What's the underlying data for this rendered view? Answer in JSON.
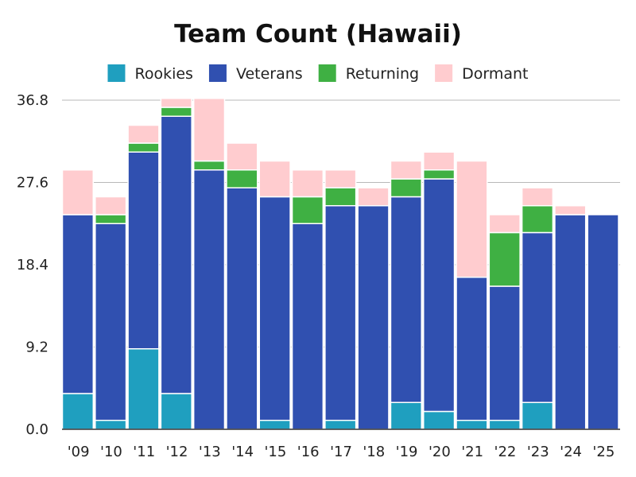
{
  "chart_data": {
    "type": "bar",
    "stacked": true,
    "title": "Team Count (Hawaii)",
    "xlabel": "",
    "ylabel": "",
    "categories": [
      "'09",
      "'10",
      "'11",
      "'12",
      "'13",
      "'14",
      "'15",
      "'16",
      "'17",
      "'18",
      "'19",
      "'20",
      "'21",
      "'22",
      "'23",
      "'24",
      "'25"
    ],
    "series": [
      {
        "name": "Rookies",
        "color": "#1f9fbf",
        "values": [
          4,
          1,
          9,
          4,
          0,
          0,
          1,
          0,
          1,
          0,
          3,
          2,
          1,
          1,
          3,
          0,
          0
        ]
      },
      {
        "name": "Veterans",
        "color": "#3050b0",
        "values": [
          20,
          22,
          22,
          31,
          29,
          27,
          25,
          23,
          24,
          25,
          23,
          26,
          16,
          15,
          19,
          24,
          24
        ]
      },
      {
        "name": "Returning",
        "color": "#3fb043",
        "values": [
          0,
          1,
          1,
          1,
          1,
          2,
          0,
          3,
          2,
          0,
          2,
          1,
          0,
          6,
          3,
          0,
          0
        ]
      },
      {
        "name": "Dormant",
        "color": "#ffcccf",
        "values": [
          5,
          2,
          2,
          1,
          7,
          3,
          4,
          3,
          2,
          2,
          2,
          2,
          13,
          2,
          2,
          1,
          0
        ]
      }
    ],
    "yticks": [
      "0.0",
      "9.2",
      "18.4",
      "27.6",
      "36.8"
    ],
    "ylim": [
      0,
      36.8
    ],
    "legend_position": "top",
    "grid": true
  }
}
